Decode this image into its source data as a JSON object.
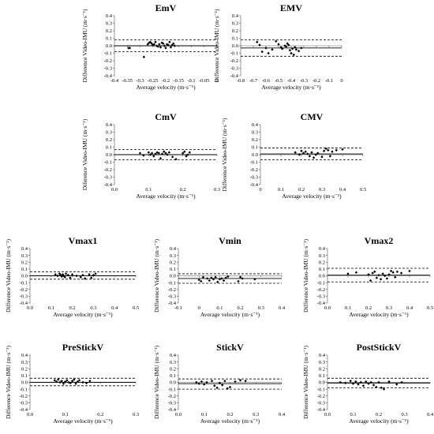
{
  "chart_data": [
    {
      "type": "scatter",
      "title": "EmV",
      "xlabel": "Average velocity (m·s⁻¹)",
      "ylabel": "Difference Video-IMU (m·s⁻¹)",
      "xlim": [
        -0.4,
        0
      ],
      "ylim": [
        -0.4,
        0.4
      ],
      "xticks": [
        -0.4,
        -0.35,
        -0.3,
        -0.25,
        -0.2,
        -0.15,
        -0.1,
        -0.05,
        0
      ],
      "xticklabels": [
        "-0.4",
        "-0.35",
        "-0.3",
        "-0.25",
        "-0.2",
        "-0.15",
        "-0.1",
        "-0.05",
        "0"
      ],
      "yticks": [
        -0.4,
        -0.3,
        -0.2,
        -0.1,
        0,
        0.1,
        0.2,
        0.3,
        0.4
      ],
      "yticklabels": [
        "-0.4",
        "-0.3",
        "-0.2",
        "-0.1",
        "0.0",
        "0.1",
        "0.2",
        "0.3",
        "0.4"
      ],
      "mean": 0.0,
      "upper": 0.08,
      "lower": -0.08,
      "x": [
        -0.345,
        -0.34,
        -0.285,
        -0.27,
        -0.265,
        -0.26,
        -0.255,
        -0.25,
        -0.245,
        -0.24,
        -0.235,
        -0.23,
        -0.225,
        -0.22,
        -0.215,
        -0.21,
        -0.205,
        -0.2,
        -0.195,
        -0.19,
        -0.185,
        -0.18,
        -0.175,
        -0.17,
        -0.165
      ],
      "y": [
        -0.03,
        -0.03,
        -0.15,
        0.02,
        0.04,
        0.05,
        0.03,
        0.01,
        0.02,
        0.05,
        0.0,
        -0.01,
        0.02,
        -0.02,
        0.04,
        0.03,
        0.0,
        -0.03,
        0.02,
        0.01,
        0.05,
        -0.02,
        0.01,
        0.03,
        0.0
      ]
    },
    {
      "type": "scatter",
      "title": "EMV",
      "xlabel": "Average velocity (m·s⁻¹)",
      "ylabel": "Difference Video-IMU (m·s⁻¹)",
      "xlim": [
        -0.8,
        0
      ],
      "ylim": [
        -0.4,
        0.4
      ],
      "xticks": [
        -0.8,
        -0.7,
        -0.6,
        -0.5,
        -0.4,
        -0.3,
        -0.2,
        -0.1,
        0
      ],
      "xticklabels": [
        "-0.8",
        "-0.7",
        "-0.6",
        "-0.5",
        "-0.4",
        "-0.3",
        "-0.2",
        "-0.1",
        "0"
      ],
      "yticks": [
        -0.4,
        -0.3,
        -0.2,
        -0.1,
        0,
        0.1,
        0.2,
        0.3,
        0.4
      ],
      "yticklabels": [
        "-0.4",
        "-0.3",
        "-0.2",
        "-0.1",
        "0.0",
        "0.1",
        "0.2",
        "0.3",
        "0.4"
      ],
      "mean": -0.03,
      "upper": 0.08,
      "lower": -0.14,
      "x": [
        -0.67,
        -0.65,
        -0.63,
        -0.6,
        -0.58,
        -0.55,
        -0.52,
        -0.5,
        -0.48,
        -0.47,
        -0.45,
        -0.44,
        -0.43,
        -0.42,
        -0.41,
        -0.4,
        -0.39,
        -0.38,
        -0.37,
        -0.36,
        -0.34,
        -0.32
      ],
      "y": [
        0.05,
        0.01,
        -0.08,
        -0.03,
        -0.1,
        -0.05,
        0.06,
        0.02,
        -0.02,
        -0.04,
        0.0,
        -0.01,
        0.03,
        0.01,
        -0.06,
        -0.1,
        -0.04,
        -0.12,
        -0.02,
        -0.05,
        -0.07,
        -0.03
      ]
    },
    {
      "type": "scatter",
      "title": "CmV",
      "xlabel": "Average velocity (m·s⁻¹)",
      "ylabel": "Diference Video-IMU (m·s⁻¹)",
      "xlim": [
        0,
        0.3
      ],
      "ylim": [
        -0.4,
        0.4
      ],
      "xticks": [
        0,
        0.1,
        0.2,
        0.3
      ],
      "xticklabels": [
        "0.0",
        "0.1",
        "0.2",
        "0.3"
      ],
      "yticks": [
        -0.4,
        -0.3,
        -0.2,
        -0.1,
        0,
        0.1,
        0.2,
        0.3,
        0.4
      ],
      "yticklabels": [
        "-0.4",
        "-0.3",
        "-0.2",
        "-0.1",
        "0.0",
        "0.1",
        "0.2",
        "0.3",
        "0.4"
      ],
      "mean": 0.0,
      "upper": 0.07,
      "lower": -0.07,
      "x": [
        0.075,
        0.085,
        0.1,
        0.105,
        0.11,
        0.115,
        0.12,
        0.125,
        0.13,
        0.135,
        0.14,
        0.145,
        0.15,
        0.155,
        0.16,
        0.17,
        0.18,
        0.2,
        0.205,
        0.21,
        0.215,
        0.22
      ],
      "y": [
        0.02,
        -0.01,
        0.03,
        0.0,
        0.02,
        -0.02,
        0.01,
        0.03,
        0.02,
        -0.05,
        0.01,
        0.04,
        0.02,
        0.0,
        0.03,
        -0.03,
        -0.06,
        0.02,
        0.04,
        -0.02,
        0.0,
        0.03
      ]
    },
    {
      "type": "scatter",
      "title": "CMV",
      "xlabel": "Average velocity (m·s⁻¹)",
      "ylabel": "Difference Video-IMU (m·s⁻¹)",
      "xlim": [
        0,
        0.5
      ],
      "ylim": [
        -0.4,
        0.4
      ],
      "xticks": [
        0,
        0.1,
        0.2,
        0.3,
        0.4,
        0.5
      ],
      "xticklabels": [
        "0",
        "0.1",
        "0.2",
        "0.3",
        "0.4",
        "0.5"
      ],
      "yticks": [
        -0.4,
        -0.3,
        -0.2,
        -0.1,
        0,
        0.1,
        0.2,
        0.3,
        0.4
      ],
      "yticklabels": [
        "-0.4",
        "-0.3",
        "-0.2",
        "-0.1",
        "0.0",
        "0.1",
        "0.2",
        "0.3",
        "0.4"
      ],
      "mean": 0.01,
      "upper": 0.09,
      "lower": -0.07,
      "x": [
        0.17,
        0.19,
        0.2,
        0.21,
        0.22,
        0.23,
        0.24,
        0.25,
        0.26,
        0.27,
        0.28,
        0.3,
        0.31,
        0.32,
        0.33,
        0.34,
        0.35,
        0.37,
        0.4
      ],
      "y": [
        0.03,
        0.0,
        0.05,
        0.02,
        0.04,
        0.01,
        -0.02,
        0.03,
        -0.04,
        0.0,
        0.02,
        -0.03,
        0.05,
        0.08,
        0.06,
        -0.02,
        0.04,
        0.06,
        0.07
      ]
    },
    {
      "type": "scatter",
      "title": "Vmax1",
      "xlabel": "Average velocity (m·s⁻¹)",
      "ylabel": "Difference Video-IMU (m·s⁻¹)",
      "xlim": [
        0,
        0.5
      ],
      "ylim": [
        -0.4,
        0.4
      ],
      "xticks": [
        0,
        0.1,
        0.2,
        0.3,
        0.4,
        0.5
      ],
      "xticklabels": [
        "0.0",
        "0.1",
        "0.2",
        "0.3",
        "0.4",
        "0.5"
      ],
      "yticks": [
        -0.4,
        -0.3,
        -0.2,
        -0.1,
        0,
        0.1,
        0.2,
        0.3,
        0.4
      ],
      "yticklabels": [
        "-0.4",
        "-0.3",
        "-0.2",
        "-0.1",
        "0.0",
        "0.1",
        "0.2",
        "0.3",
        "0.4"
      ],
      "mean": 0.0,
      "upper": 0.06,
      "lower": -0.05,
      "x": [
        0.12,
        0.13,
        0.14,
        0.145,
        0.15,
        0.155,
        0.16,
        0.165,
        0.17,
        0.18,
        0.19,
        0.2,
        0.22,
        0.24,
        0.25,
        0.26,
        0.28,
        0.29,
        0.3,
        0.31
      ],
      "y": [
        0.02,
        0.0,
        0.03,
        0.01,
        -0.01,
        0.02,
        0.0,
        -0.02,
        0.03,
        0.01,
        -0.03,
        0.02,
        0.0,
        -0.02,
        0.01,
        -0.04,
        0.02,
        -0.03,
        0.01,
        0.03
      ]
    },
    {
      "type": "scatter",
      "title": "Vmin",
      "xlabel": "Average velocity (m·s⁻¹)",
      "ylabel": "Difference Video-IMU (m·s⁻¹)",
      "xlim": [
        -0.1,
        0.4
      ],
      "ylim": [
        -0.4,
        0.4
      ],
      "xticks": [
        -0.1,
        0,
        0.1,
        0.2,
        0.3,
        0.4
      ],
      "xticklabels": [
        "-0.1",
        "0",
        "0.1",
        "0.2",
        "0.3",
        "0.4"
      ],
      "yticks": [
        -0.4,
        -0.3,
        -0.2,
        -0.1,
        0,
        0.1,
        0.2,
        0.3,
        0.4
      ],
      "yticklabels": [
        "-0.4",
        "-0.3",
        "-0.2",
        "-0.1",
        "0.0",
        "0.1",
        "0.2",
        "0.3",
        "0.4"
      ],
      "mean": -0.04,
      "upper": 0.03,
      "lower": -0.11,
      "x": [
        0.0,
        0.01,
        0.02,
        0.04,
        0.05,
        0.06,
        0.07,
        0.08,
        0.09,
        0.1,
        0.11,
        0.12,
        0.13,
        0.14,
        0.19,
        0.2,
        0.21,
        0.27
      ],
      "y": [
        -0.06,
        -0.08,
        -0.02,
        -0.04,
        -0.07,
        -0.03,
        -0.05,
        -0.02,
        -0.09,
        -0.05,
        -0.04,
        -0.07,
        -0.03,
        -0.01,
        -0.08,
        -0.02,
        -0.04,
        -0.05
      ]
    },
    {
      "type": "scatter",
      "title": "Vmax2",
      "xlabel": "Average velocity (m·s⁻¹)",
      "ylabel": "Difference Video-IMU (m·s⁻¹)",
      "xlim": [
        0,
        0.5
      ],
      "ylim": [
        -0.4,
        0.4
      ],
      "xticks": [
        0,
        0.1,
        0.2,
        0.3,
        0.4,
        0.5
      ],
      "xticklabels": [
        "0.0",
        "0.1",
        "0.2",
        "0.3",
        "0.4",
        "0.5"
      ],
      "yticks": [
        -0.4,
        -0.3,
        -0.2,
        -0.1,
        0,
        0.1,
        0.2,
        0.3,
        0.4
      ],
      "yticklabels": [
        "-0.4",
        "-0.3",
        "-0.2",
        "-0.1",
        "0.0",
        "0.1",
        "0.2",
        "0.3",
        "0.4"
      ],
      "mean": 0.01,
      "upper": 0.11,
      "lower": -0.09,
      "x": [
        0.1,
        0.14,
        0.2,
        0.21,
        0.22,
        0.23,
        0.24,
        0.25,
        0.26,
        0.27,
        0.28,
        0.29,
        0.3,
        0.31,
        0.32,
        0.33,
        0.34,
        0.36,
        0.4
      ],
      "y": [
        0.03,
        0.05,
        0.02,
        -0.07,
        0.04,
        0.06,
        -0.03,
        0.01,
        -0.05,
        0.03,
        0.0,
        -0.04,
        0.02,
        0.07,
        0.05,
        -0.02,
        0.06,
        0.04,
        0.07
      ]
    },
    {
      "type": "scatter",
      "title": "PreStickV",
      "xlabel": "Average velocity (m·s⁻¹)",
      "ylabel": "Difference Video-IMU (m·s⁻¹)",
      "xlim": [
        0,
        0.3
      ],
      "ylim": [
        -0.4,
        0.4
      ],
      "xticks": [
        0,
        0.1,
        0.2,
        0.3
      ],
      "xticklabels": [
        "0.0",
        "0.1",
        "0.2",
        "0.3"
      ],
      "yticks": [
        -0.4,
        -0.3,
        -0.2,
        -0.1,
        0,
        0.1,
        0.2,
        0.3,
        0.4
      ],
      "yticklabels": [
        "-0.4",
        "-0.3",
        "-0.2",
        "-0.1",
        "0.0",
        "0.1",
        "0.2",
        "0.3",
        "0.4"
      ],
      "mean": 0.0,
      "upper": 0.06,
      "lower": -0.05,
      "x": [
        0.07,
        0.075,
        0.08,
        0.085,
        0.09,
        0.095,
        0.1,
        0.105,
        0.11,
        0.115,
        0.12,
        0.125,
        0.13,
        0.135,
        0.14,
        0.15,
        0.16,
        0.17
      ],
      "y": [
        0.03,
        0.01,
        0.04,
        0.0,
        0.02,
        -0.02,
        0.01,
        0.03,
        0.0,
        -0.01,
        0.02,
        0.04,
        -0.02,
        0.01,
        0.03,
        0.0,
        -0.01,
        0.02
      ]
    },
    {
      "type": "scatter",
      "title": "StickV",
      "xlabel": "Average velocity (m·s⁻¹)",
      "ylabel": "Difference Video-IMU (m·s⁻¹)",
      "xlim": [
        0,
        0.4
      ],
      "ylim": [
        -0.4,
        0.4
      ],
      "xticks": [
        0,
        0.1,
        0.2,
        0.3,
        0.4
      ],
      "xticklabels": [
        "0.0",
        "0.1",
        "0.2",
        "0.3",
        "0.4"
      ],
      "yticks": [
        -0.4,
        -0.3,
        -0.2,
        -0.1,
        0,
        0.1,
        0.2,
        0.3,
        0.4
      ],
      "yticklabels": [
        "-0.4",
        "-0.3",
        "-0.2",
        "-0.1",
        "0.0",
        "0.1",
        "0.2",
        "0.3",
        "0.4"
      ],
      "mean": -0.02,
      "upper": 0.05,
      "lower": -0.1,
      "x": [
        0.07,
        0.08,
        0.09,
        0.1,
        0.11,
        0.13,
        0.14,
        0.15,
        0.16,
        0.17,
        0.18,
        0.19,
        0.2,
        0.22,
        0.24,
        0.26
      ],
      "y": [
        0.0,
        -0.02,
        0.01,
        -0.03,
        0.0,
        0.02,
        -0.05,
        -0.08,
        -0.01,
        -0.04,
        0.02,
        -0.09,
        -0.07,
        0.01,
        0.03,
        0.02
      ]
    },
    {
      "type": "scatter",
      "title": "PostStickV",
      "xlabel": "Average velocity (m·s⁻¹)",
      "ylabel": "Difference Video-IMU (m·s⁻¹)",
      "xlim": [
        0,
        0.4
      ],
      "ylim": [
        -0.4,
        0.4
      ],
      "xticks": [
        0,
        0.1,
        0.2,
        0.3,
        0.4
      ],
      "xticklabels": [
        "0.0",
        "0.1",
        "0.2",
        "0.3",
        "0.4"
      ],
      "yticks": [
        -0.4,
        -0.3,
        -0.2,
        -0.1,
        0,
        0.1,
        0.2,
        0.3,
        0.4
      ],
      "yticklabels": [
        "-0.4",
        "-0.3",
        "-0.2",
        "-0.1",
        "0.0",
        "0.1",
        "0.2",
        "0.3",
        "0.4"
      ],
      "mean": -0.01,
      "upper": 0.06,
      "lower": -0.08,
      "x": [
        0.05,
        0.07,
        0.09,
        0.1,
        0.11,
        0.12,
        0.13,
        0.14,
        0.15,
        0.16,
        0.17,
        0.18,
        0.19,
        0.2,
        0.21,
        0.22,
        0.24,
        0.27,
        0.29
      ],
      "y": [
        0.0,
        -0.01,
        0.02,
        -0.02,
        0.01,
        -0.03,
        0.0,
        -0.05,
        0.01,
        -0.02,
        0.0,
        -0.04,
        -0.07,
        0.0,
        -0.08,
        -0.1,
        0.01,
        -0.03,
        0.0
      ]
    }
  ]
}
